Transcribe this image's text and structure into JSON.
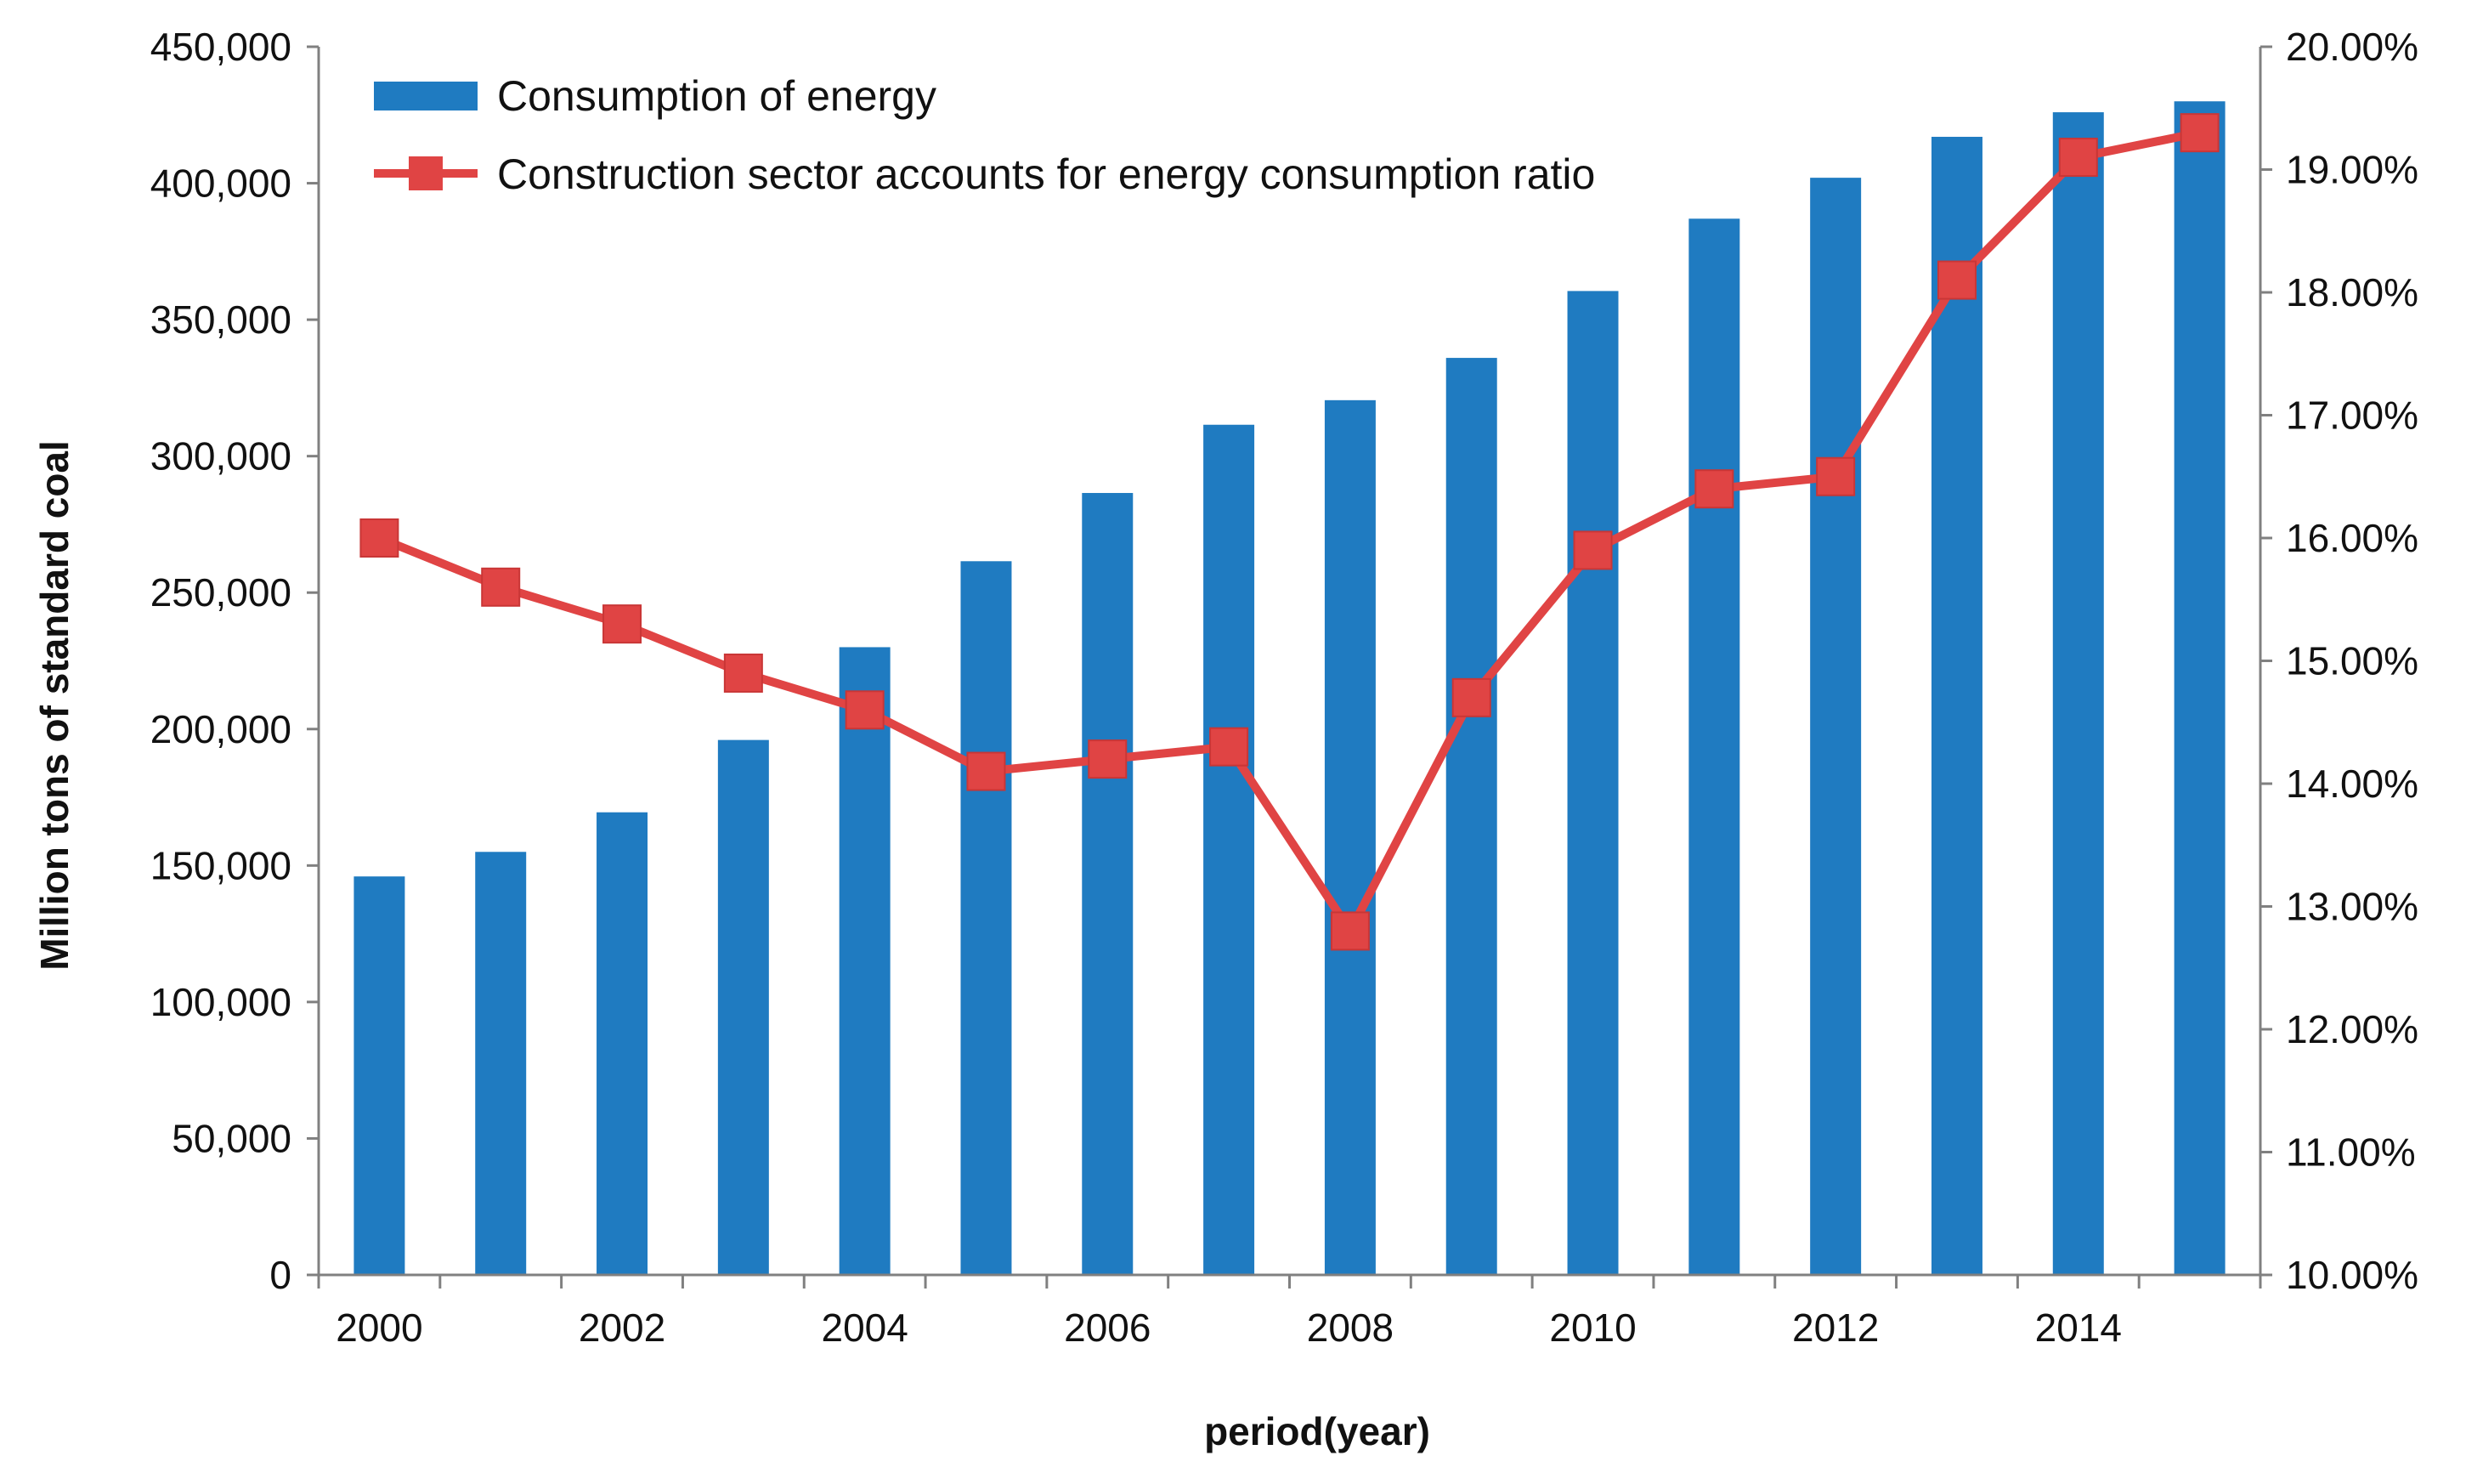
{
  "chart_data": {
    "type": "bar+line",
    "title": "",
    "categories": [
      "2000",
      "2001",
      "2002",
      "2003",
      "2004",
      "2005",
      "2006",
      "2007",
      "2008",
      "2009",
      "2010",
      "2011",
      "2012",
      "2013",
      "2014",
      "2015"
    ],
    "x_tick_labels": [
      "2000",
      "2002",
      "2004",
      "2006",
      "2008",
      "2010",
      "2012",
      "2014"
    ],
    "xlabel": "period(year)",
    "ylabel": "Million tons of standard coal",
    "y_left": {
      "lim": [
        0,
        450000
      ],
      "ticks": [
        0,
        50000,
        100000,
        150000,
        200000,
        250000,
        300000,
        350000,
        400000,
        450000
      ],
      "tick_labels": [
        "0",
        "50,000",
        "100,000",
        "150,000",
        "200,000",
        "250,000",
        "300,000",
        "350,000",
        "400,000",
        "450,000"
      ]
    },
    "y_right": {
      "lim": [
        10.0,
        20.0
      ],
      "ticks": [
        10,
        11,
        12,
        13,
        14,
        15,
        16,
        17,
        18,
        19,
        20
      ],
      "tick_labels": [
        "10.00%",
        "11.00%",
        "12.00%",
        "13.00%",
        "14.00%",
        "15.00%",
        "16.00%",
        "17.00%",
        "18.00%",
        "19.00%",
        "20.00%"
      ]
    },
    "series": [
      {
        "name": "Consumption of energy",
        "kind": "bar",
        "axis": "left",
        "color": "#1f7bc1",
        "values": [
          146000,
          155000,
          169500,
          196000,
          230000,
          261500,
          286500,
          311500,
          320500,
          336000,
          360500,
          387000,
          402000,
          417000,
          426000,
          430000
        ]
      },
      {
        "name": "Construction sector accounts for energy consumption ratio",
        "kind": "line",
        "axis": "right",
        "color": "#e04444",
        "values": [
          16.0,
          15.6,
          15.3,
          14.9,
          14.6,
          14.1,
          14.2,
          14.3,
          12.8,
          14.7,
          15.9,
          16.4,
          16.5,
          18.1,
          19.1,
          19.3
        ]
      }
    ],
    "legend_position": "top-left"
  }
}
